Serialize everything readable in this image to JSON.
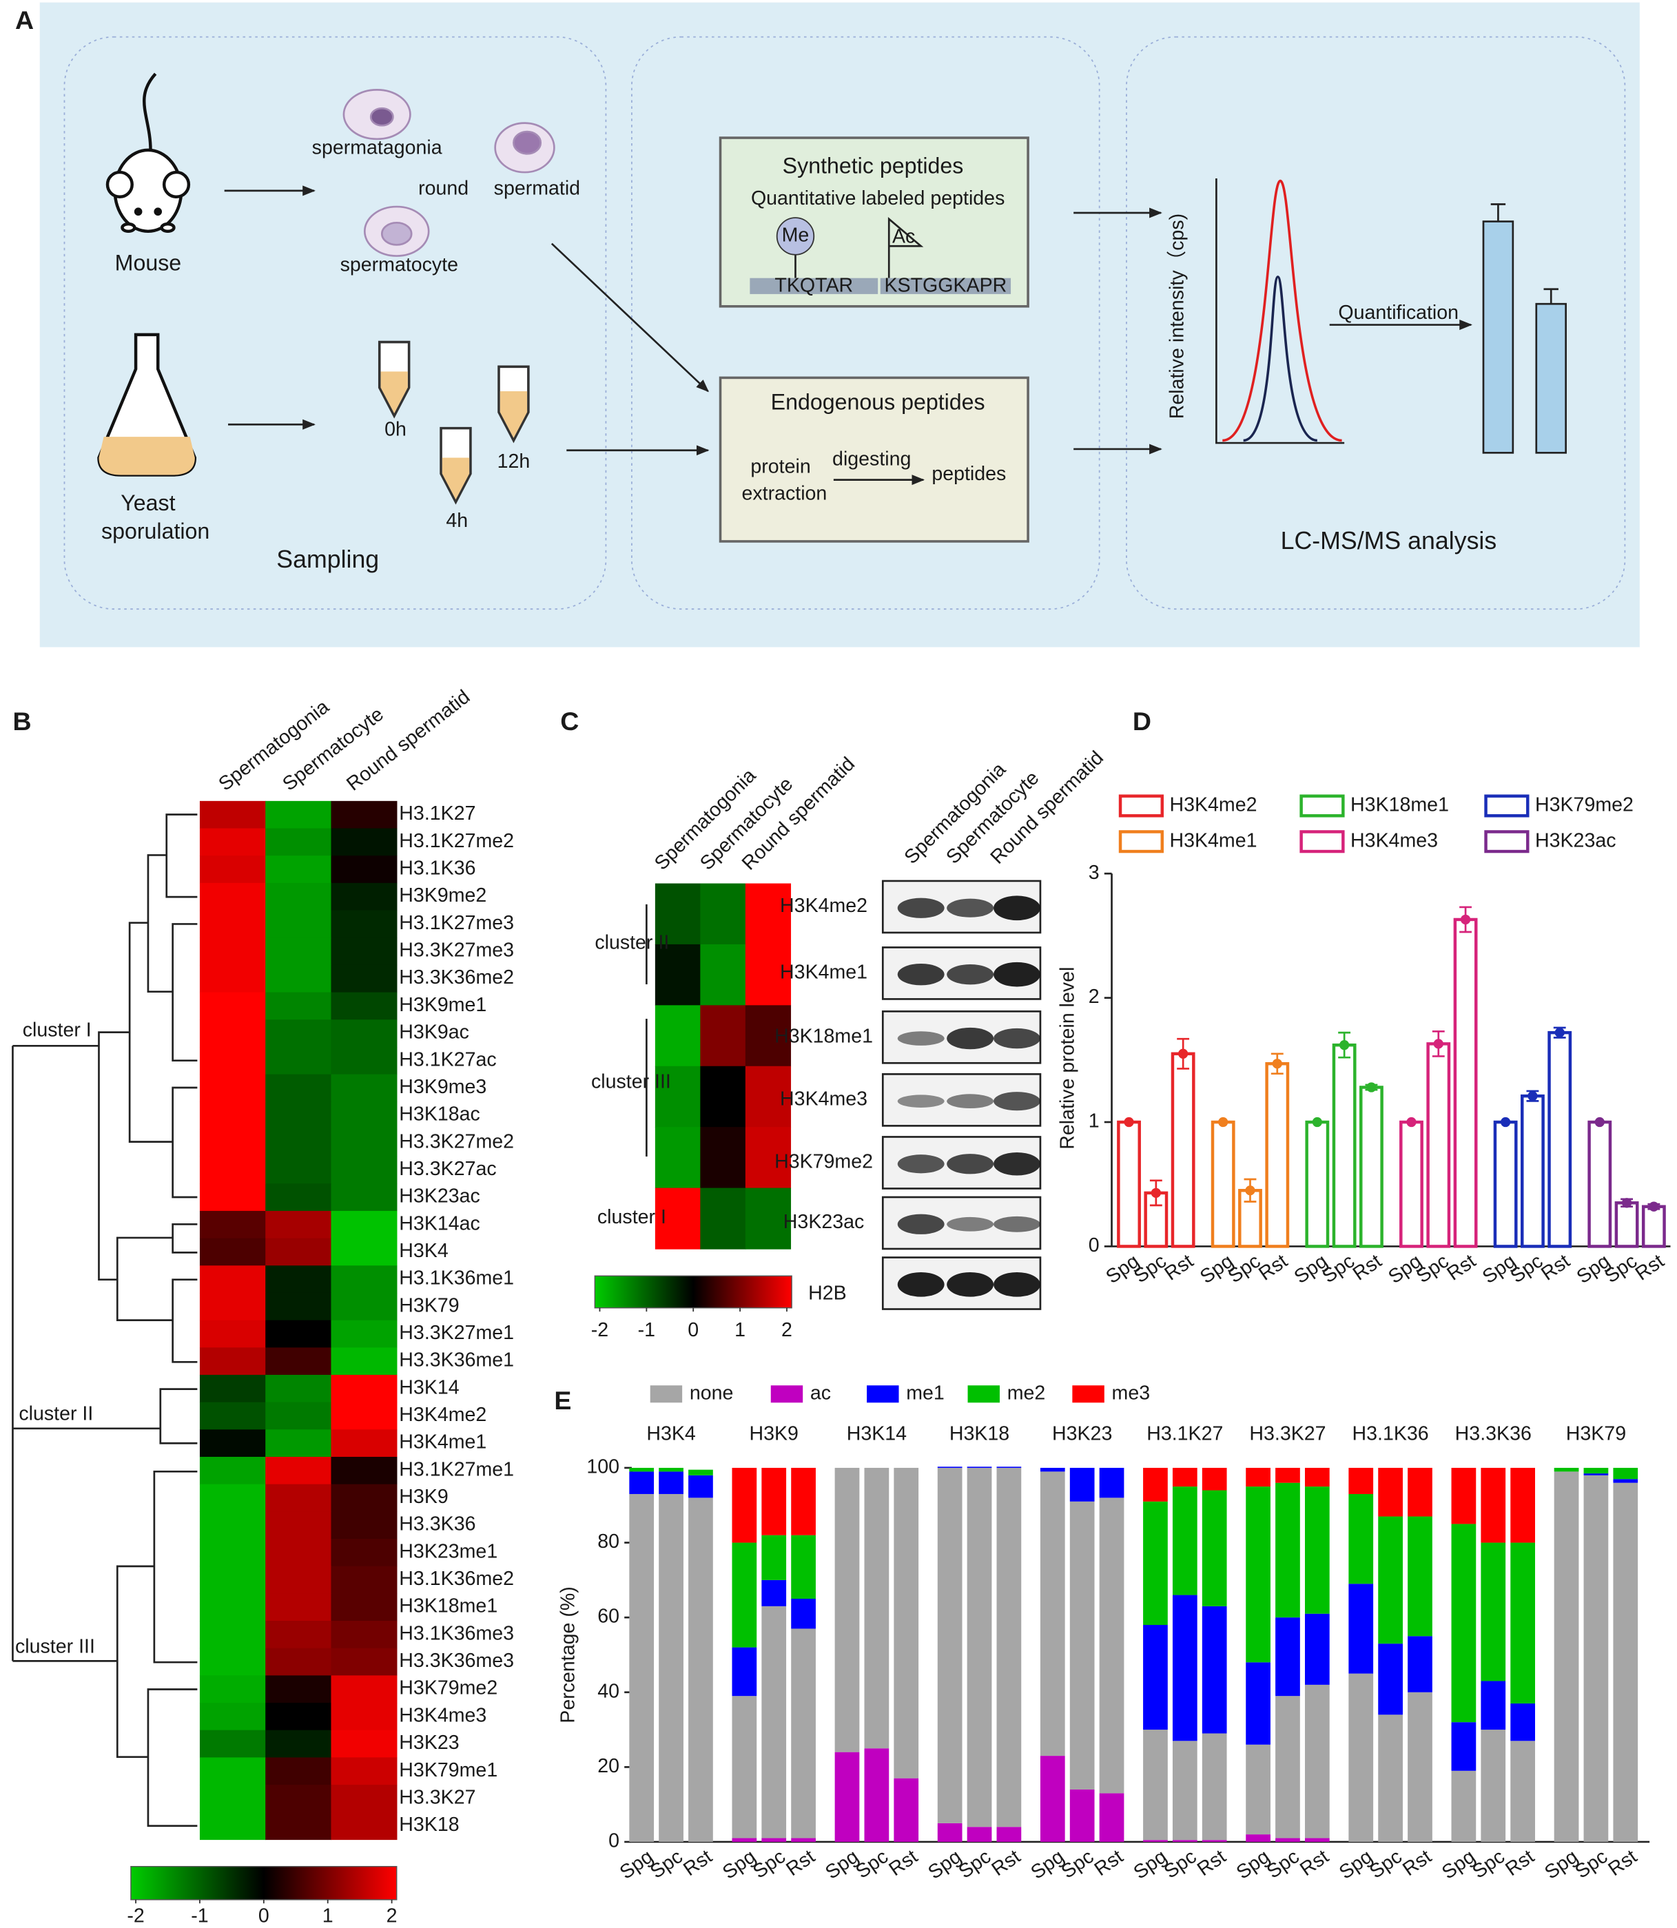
{
  "panel_labels": [
    "A",
    "B",
    "C",
    "D",
    "E"
  ],
  "diagram": {
    "mouse": "Mouse",
    "spermatogonia": "spermatagonia",
    "round": "round",
    "spermatid": "spermatid",
    "spermatocyte": "spermatocyte",
    "yeast": [
      "Yeast",
      "sporulation"
    ],
    "times": [
      "0h",
      "4h",
      "12h"
    ],
    "sampling": "Sampling",
    "synthetic": {
      "title": "Synthetic peptides",
      "subtitle": "Quantitative labeled peptides",
      "me": "Me",
      "ac": "Ac",
      "peptides": [
        "TKQTAR",
        "KSTGGKAPR"
      ]
    },
    "endogenous": {
      "title": "Endogenous peptides",
      "steps": [
        "protein",
        "extraction"
      ],
      "digesting": "digesting",
      "product": "peptides"
    },
    "ms_ylabel": "Relative intensity（cps)",
    "quantification": "Quantification",
    "analysis": "LC-MS/MS analysis"
  },
  "chart_data": [
    {
      "type": "heatmap",
      "columns": [
        "Spermatogonia",
        "Spermatocyte",
        "Round spermatid"
      ],
      "rows": [
        "H3.1K27",
        "H3.1K27me2",
        "H3.1K36",
        "H3K9me2",
        "H3.1K27me3",
        "H3.3K27me3",
        "H3.3K36me2",
        "H3K9me1",
        "H3K9ac",
        "H3.1K27ac",
        "H3K9me3",
        "H3K18ac",
        "H3.3K27me2",
        "H3.3K27ac",
        "H3K23ac",
        "H3K14ac",
        "H3K4",
        "H3.1K36me1",
        "H3K79",
        "H3.3K27me1",
        "H3.3K36me1",
        "H3K14",
        "H3K4me2",
        "H3K4me1",
        "H3.1K27me1",
        "H3K9",
        "H3.3K36",
        "H3K23me1",
        "H3.1K36me2",
        "H3K18me1",
        "H3.1K36me3",
        "H3.3K36me3",
        "H3K79me2",
        "H3K4me3",
        "H3K23",
        "H3K79me1",
        "H3.3K27",
        "H3K18"
      ],
      "values": [
        [
          1.5,
          -1.6,
          0.3
        ],
        [
          1.8,
          -1.4,
          -0.2
        ],
        [
          1.7,
          -1.6,
          0.1
        ],
        [
          1.9,
          -1.5,
          -0.3
        ],
        [
          1.9,
          -1.5,
          -0.4
        ],
        [
          1.9,
          -1.5,
          -0.4
        ],
        [
          1.9,
          -1.5,
          -0.4
        ],
        [
          2,
          -1.3,
          -0.7
        ],
        [
          2,
          -1.1,
          -1
        ],
        [
          2,
          -1.1,
          -1
        ],
        [
          2,
          -0.9,
          -1.2
        ],
        [
          2,
          -0.9,
          -1.2
        ],
        [
          2,
          -0.9,
          -1.2
        ],
        [
          2,
          -0.9,
          -1.2
        ],
        [
          2,
          -0.8,
          -1.2
        ],
        [
          0.7,
          1.3,
          -1.9
        ],
        [
          0.6,
          1.2,
          -1.9
        ],
        [
          1.8,
          -0.3,
          -1.4
        ],
        [
          1.8,
          -0.3,
          -1.4
        ],
        [
          1.7,
          0,
          -1.6
        ],
        [
          1.4,
          0.5,
          -1.8
        ],
        [
          -0.6,
          -1.3,
          2
        ],
        [
          -0.8,
          -1.2,
          2
        ],
        [
          -0.1,
          -1.5,
          1.7
        ],
        [
          -1.6,
          1.8,
          0.2
        ],
        [
          -1.8,
          1.4,
          0.5
        ],
        [
          -1.8,
          1.4,
          0.5
        ],
        [
          -1.8,
          1.4,
          0.6
        ],
        [
          -1.8,
          1.4,
          0.7
        ],
        [
          -1.8,
          1.4,
          0.7
        ],
        [
          -1.8,
          1.2,
          0.9
        ],
        [
          -1.8,
          1.1,
          1
        ],
        [
          -1.7,
          0.2,
          1.8
        ],
        [
          -1.6,
          0,
          1.8
        ],
        [
          -1.2,
          -0.3,
          1.9
        ],
        [
          -1.8,
          0.5,
          1.6
        ],
        [
          -1.8,
          0.6,
          1.4
        ],
        [
          -1.8,
          0.6,
          1.4
        ]
      ],
      "clusters": [
        "cluster I",
        "cluster II",
        "cluster III"
      ],
      "clim": [
        -2,
        2
      ],
      "cticks": [
        -2,
        -1,
        0,
        1,
        2
      ],
      "colors": [
        "#00cc00",
        "#000000",
        "#ff0000"
      ]
    },
    {
      "type": "heatmap",
      "columns": [
        "Spermatogonia",
        "Spermatocyte",
        "Round spermatid"
      ],
      "rows": [
        "H3K4me2",
        "H3K4me1",
        "H3K18me1",
        "H3K4me3",
        "H3K79me2",
        "H3K23ac"
      ],
      "values": [
        [
          -0.8,
          -1.1,
          2
        ],
        [
          -0.2,
          -1.4,
          2
        ],
        [
          -1.7,
          1,
          0.6
        ],
        [
          -1.4,
          0,
          1.5
        ],
        [
          -1.5,
          0.2,
          1.6
        ],
        [
          2,
          -0.9,
          -1.1
        ]
      ],
      "clusters": [
        "cluster II",
        "cluster III",
        "cluster I"
      ],
      "clim": [
        -2,
        2
      ],
      "cticks": [
        -2,
        -1,
        0,
        1,
        2
      ],
      "colors": [
        "#00cc00",
        "#000000",
        "#ff0000"
      ],
      "blot": {
        "columns": [
          "Spermatogonia",
          "Spermatocyte",
          "Round spermatid"
        ],
        "loading_control": "H2B"
      }
    },
    {
      "type": "bar",
      "categories": [
        "Spg",
        "Spc",
        "Rst"
      ],
      "ylabel": "Relative protein level",
      "ylim": [
        0,
        3
      ],
      "yticks": [
        0,
        1,
        2,
        3
      ],
      "series": [
        {
          "name": "H3K4me2",
          "color": "#e8262a",
          "values": [
            1,
            0.43,
            1.55
          ],
          "errors": [
            0,
            0.1,
            0.12
          ]
        },
        {
          "name": "H3K4me1",
          "color": "#f07f1e",
          "values": [
            1,
            0.45,
            1.47
          ],
          "errors": [
            0,
            0.09,
            0.08
          ]
        },
        {
          "name": "H3K18me1",
          "color": "#2cb32c",
          "values": [
            1,
            1.62,
            1.28
          ],
          "errors": [
            0,
            0.1,
            0.02
          ]
        },
        {
          "name": "H3K4me3",
          "color": "#d6237a",
          "values": [
            1,
            1.63,
            2.63
          ],
          "errors": [
            0,
            0.1,
            0.1
          ]
        },
        {
          "name": "H3K79me2",
          "color": "#1a2eb8",
          "values": [
            1,
            1.21,
            1.72
          ],
          "errors": [
            0,
            0.04,
            0.04
          ]
        },
        {
          "name": "H3K23ac",
          "color": "#7b2a8c",
          "values": [
            1,
            0.35,
            0.32
          ],
          "errors": [
            0,
            0.03,
            0.02
          ]
        }
      ]
    },
    {
      "type": "stacked_bar",
      "groups": [
        "H3K4",
        "H3K9",
        "H3K14",
        "H3K18",
        "H3K23",
        "H3.1K27",
        "H3.3K27",
        "H3.1K36",
        "H3.3K36",
        "H3K79"
      ],
      "categories": [
        "Spg",
        "Spc",
        "Rst",
        "Spg",
        "Spc",
        "Rst",
        "Spg",
        "Spc",
        "Rst",
        "Spg",
        "Spc",
        "Rst",
        "Spg",
        "Spc",
        "Rst",
        "Spg",
        "Spc",
        "Rst",
        "Spg",
        "Spc",
        "Rst",
        "Spg",
        "Spc",
        "Rst",
        "Spg",
        "Spc",
        "Rst",
        "Spg",
        "Spc",
        "Rst"
      ],
      "ylabel": "Percentage (%)",
      "ylim": [
        0,
        100
      ],
      "yticks": [
        0,
        20,
        40,
        60,
        80,
        100
      ],
      "series": [
        {
          "name": "ac",
          "color": "#c000c0",
          "values": [
            0,
            0,
            0,
            1,
            1,
            1,
            24,
            25,
            17,
            5,
            4,
            4,
            23,
            14,
            13,
            0.5,
            0.5,
            0.5,
            2,
            1,
            1,
            0,
            0,
            0,
            0,
            0,
            0,
            0,
            0,
            0
          ]
        },
        {
          "name": "none",
          "color": "#a6a6a6",
          "values": [
            93,
            93,
            92,
            38,
            62,
            56,
            76,
            75,
            83,
            95,
            96,
            96,
            76,
            77,
            79,
            29.5,
            26.5,
            28.5,
            24,
            38,
            41,
            45,
            34,
            40,
            19,
            30,
            27,
            99,
            98,
            96
          ]
        },
        {
          "name": "me1",
          "color": "#0000ff",
          "values": [
            6,
            6,
            6,
            13,
            7,
            8,
            0,
            0,
            0,
            0.3,
            0.3,
            0.3,
            1,
            9,
            8,
            28,
            39,
            34,
            22,
            21,
            19,
            24,
            19,
            15,
            13,
            13,
            10,
            0,
            0.5,
            1
          ]
        },
        {
          "name": "me2",
          "color": "#00c000",
          "values": [
            1,
            1,
            1.5,
            28,
            12,
            17,
            0,
            0,
            0,
            0,
            0,
            0,
            0,
            0,
            0,
            33,
            29,
            31,
            47,
            36,
            34,
            24,
            34,
            32,
            53,
            37,
            43,
            1,
            1.5,
            3
          ]
        },
        {
          "name": "me3",
          "color": "#ff0000",
          "values": [
            0,
            0,
            0,
            20,
            18,
            18,
            0,
            0,
            0,
            0,
            0,
            0,
            0,
            0,
            0,
            9,
            5,
            6,
            5,
            4,
            5,
            7,
            13,
            13,
            15,
            20,
            20,
            0,
            0,
            0
          ]
        }
      ]
    }
  ]
}
